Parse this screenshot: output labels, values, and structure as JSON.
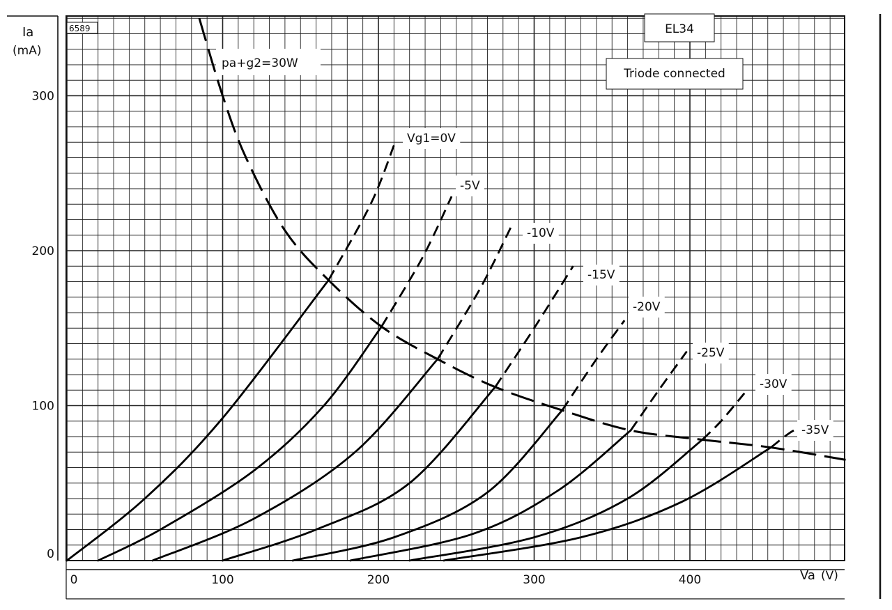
{
  "chart_data": {
    "type": "line",
    "tube": "EL34",
    "mode": "Triode connected",
    "figure_id": "6589",
    "power_label": "pa+g2=30W",
    "x_axis": {
      "name": "Va",
      "unit": "(V)",
      "range": [
        0,
        500
      ],
      "ticks": [
        0,
        100,
        200,
        300,
        400
      ]
    },
    "y_axis": {
      "name": "Ia",
      "unit": "(mA)",
      "range": [
        0,
        350
      ],
      "ticks": [
        0,
        100,
        200,
        300
      ]
    },
    "grid": true,
    "series": [
      {
        "name": "Vg1=0V",
        "solid": [
          [
            0,
            0
          ],
          [
            50,
            40
          ],
          [
            100,
            92
          ],
          [
            168,
            181
          ]
        ],
        "dashed": [
          [
            168,
            181
          ],
          [
            195,
            230
          ],
          [
            210,
            268
          ]
        ]
      },
      {
        "name": "-5V",
        "solid": [
          [
            20,
            0
          ],
          [
            60,
            20
          ],
          [
            120,
            58
          ],
          [
            165,
            100
          ],
          [
            202,
            151
          ]
        ],
        "dashed": [
          [
            202,
            151
          ],
          [
            228,
            195
          ],
          [
            247,
            235
          ]
        ]
      },
      {
        "name": "-10V",
        "solid": [
          [
            55,
            0
          ],
          [
            120,
            27
          ],
          [
            185,
            70
          ],
          [
            238,
            130
          ]
        ],
        "dashed": [
          [
            238,
            130
          ],
          [
            265,
            175
          ],
          [
            285,
            215
          ]
        ]
      },
      {
        "name": "-15V",
        "solid": [
          [
            100,
            0
          ],
          [
            160,
            20
          ],
          [
            220,
            50
          ],
          [
            275,
            112
          ]
        ],
        "dashed": [
          [
            275,
            112
          ],
          [
            300,
            150
          ],
          [
            325,
            190
          ]
        ]
      },
      {
        "name": "-20V",
        "solid": [
          [
            145,
            0
          ],
          [
            210,
            15
          ],
          [
            270,
            44
          ],
          [
            318,
            97
          ]
        ],
        "dashed": [
          [
            318,
            97
          ],
          [
            340,
            130
          ],
          [
            358,
            155
          ]
        ]
      },
      {
        "name": "-25V",
        "solid": [
          [
            182,
            0
          ],
          [
            260,
            17
          ],
          [
            315,
            45
          ],
          [
            362,
            84
          ]
        ],
        "dashed": [
          [
            362,
            84
          ],
          [
            380,
            110
          ],
          [
            398,
            135
          ]
        ]
      },
      {
        "name": "-30V",
        "solid": [
          [
            220,
            0
          ],
          [
            300,
            15
          ],
          [
            360,
            40
          ],
          [
            408,
            78
          ]
        ],
        "dashed": [
          [
            408,
            78
          ],
          [
            420,
            90
          ],
          [
            435,
            108
          ]
        ]
      },
      {
        "name": "-35V",
        "solid": [
          [
            242,
            0
          ],
          [
            330,
            15
          ],
          [
            395,
            38
          ],
          [
            452,
            73
          ]
        ],
        "dashed": [
          [
            452,
            73
          ],
          [
            465,
            83
          ],
          [
            477,
            89
          ]
        ]
      }
    ],
    "power_curve_30W": [
      [
        85,
        350
      ],
      [
        100,
        300
      ],
      [
        115,
        260
      ],
      [
        140,
        213
      ],
      [
        168,
        181
      ],
      [
        202,
        151
      ],
      [
        238,
        130
      ],
      [
        275,
        112
      ],
      [
        318,
        97
      ],
      [
        362,
        84
      ],
      [
        408,
        78
      ],
      [
        452,
        73
      ],
      [
        500,
        65
      ]
    ],
    "label_texts": [
      "Vg1=0V",
      "-5V",
      "-10V",
      "-15V",
      "-20V",
      "-25V",
      "-30V",
      "-35V"
    ]
  }
}
